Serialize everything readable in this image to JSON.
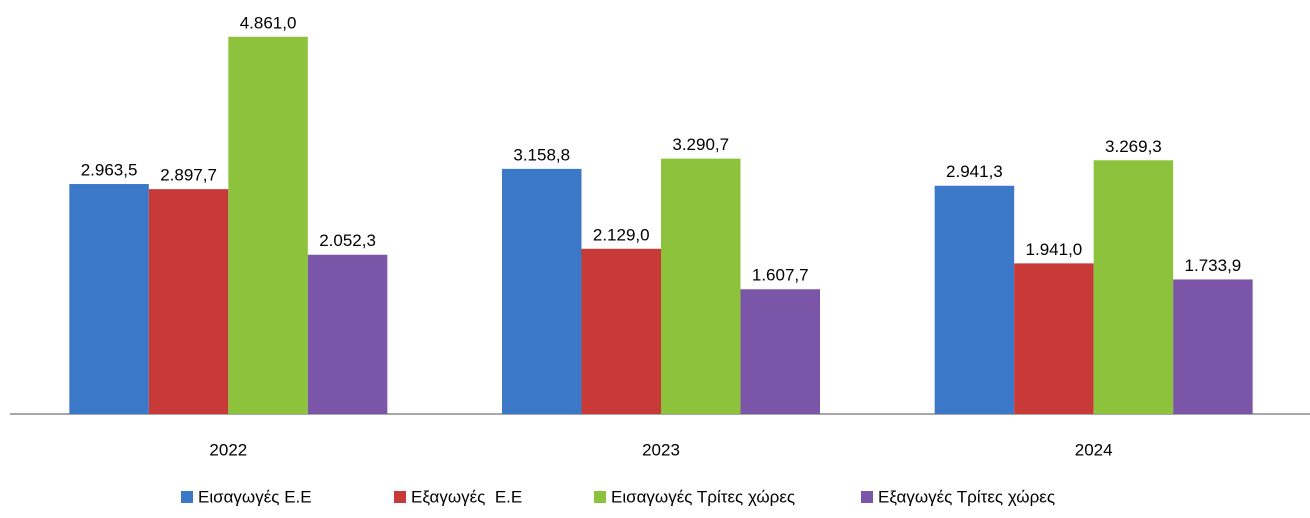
{
  "chart_data": {
    "type": "bar",
    "categories": [
      "2022",
      "2023",
      "2024"
    ],
    "ylim": [
      0,
      5000
    ],
    "series": [
      {
        "name": "Εισαγωγές Ε.Ε",
        "color": "#3b78c8",
        "values": [
          2963.5,
          3158.8,
          2941.3
        ],
        "value_labels": [
          "2.963,5",
          "3.158,8",
          "2.941,3"
        ]
      },
      {
        "name": "Εξαγωγές  Ε.Ε",
        "color": "#c83a38",
        "values": [
          2897.7,
          2129.0,
          1941.0
        ],
        "value_labels": [
          "2.897,7",
          "2.129,0",
          "1.941,0"
        ]
      },
      {
        "name": "Εισαγωγές Τρίτες χώρες",
        "color": "#8cc23c",
        "values": [
          4861.0,
          3290.7,
          3269.3
        ],
        "value_labels": [
          "4.861,0",
          "3.290,7",
          "3.269,3"
        ]
      },
      {
        "name": "Εξαγωγές Τρίτες χώρες",
        "color": "#7b56a8",
        "values": [
          2052.3,
          1607.7,
          1733.9
        ],
        "value_labels": [
          "2.052,3",
          "1.607,7",
          "1.733,9"
        ]
      }
    ],
    "legend": "bottom"
  }
}
